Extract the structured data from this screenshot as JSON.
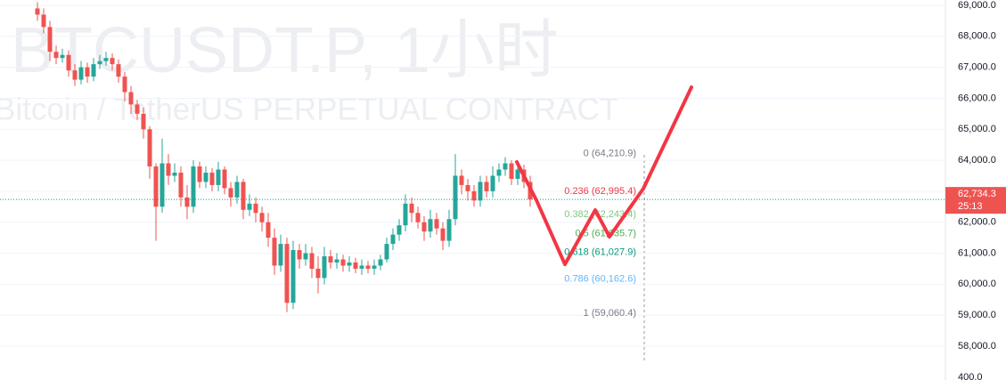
{
  "chart_data": {
    "type": "candlestick",
    "watermark_title": "BTCUSDT.P, 1小时",
    "watermark_subtitle": "Bitcoin / TetherUS PERPETUAL CONTRACT",
    "up_color": "#26a69a",
    "down_color": "#ef5350",
    "ylim": [
      57396,
      69172
    ],
    "yticks": [
      {
        "value": 69000,
        "label": "69,000.0"
      },
      {
        "value": 68000,
        "label": "68,000.0"
      },
      {
        "value": 67000,
        "label": "67,000.0"
      },
      {
        "value": 66000,
        "label": "66,000.0"
      },
      {
        "value": 65000,
        "label": "65,000.0"
      },
      {
        "value": 64000,
        "label": "64,000.0"
      },
      {
        "value": 63000,
        "label": "63,000.0"
      },
      {
        "value": 62000,
        "label": "62,000.0"
      },
      {
        "value": 61000,
        "label": "61,000.0"
      },
      {
        "value": 60000,
        "label": "60,000.0"
      },
      {
        "value": 59000,
        "label": "59,000.0"
      },
      {
        "value": 58000,
        "label": "58,000.0"
      }
    ],
    "grid": true,
    "volume_axis_label": "400.0",
    "open": [
      68900,
      68700,
      68300,
      67500,
      67300,
      67400,
      66900,
      66600,
      67000,
      66700,
      67100,
      67200,
      67300,
      67100,
      66700,
      66200,
      65800,
      65500,
      65000,
      63800,
      62500,
      63900,
      63500,
      63600,
      62800,
      62500,
      63800,
      63300,
      63600,
      63200,
      63700,
      63100,
      62800,
      63300,
      62400,
      62600,
      62300,
      62000,
      61500,
      60600,
      61300,
      59400,
      61100,
      60800,
      61000,
      60500,
      60200,
      60900,
      60700,
      60800,
      60600,
      60700,
      60500,
      60600,
      60500,
      60600,
      60800,
      61300,
      61600,
      61900,
      62600,
      62300,
      62000,
      61700,
      62100,
      61800,
      61400,
      62100,
      63500,
      63200,
      63000,
      62700,
      63300,
      63000,
      63500,
      63700,
      63900,
      63400,
      63700,
      63300
    ],
    "high": [
      69100,
      68900,
      68500,
      67700,
      67600,
      67550,
      67100,
      67200,
      67150,
      67300,
      67400,
      67500,
      67450,
      67250,
      66850,
      66400,
      65950,
      65700,
      65100,
      63900,
      64700,
      64200,
      63900,
      63800,
      63200,
      64000,
      63950,
      63800,
      63750,
      63950,
      63800,
      63300,
      63500,
      63400,
      62900,
      62800,
      62500,
      62300,
      61800,
      61600,
      61500,
      61400,
      61300,
      61300,
      61200,
      60900,
      61200,
      61100,
      61000,
      60950,
      60900,
      60850,
      60800,
      60750,
      60800,
      60950,
      61500,
      61800,
      62100,
      62900,
      62800,
      62500,
      62200,
      62400,
      62300,
      62000,
      62400,
      64200,
      63700,
      63400,
      63200,
      63500,
      63500,
      63800,
      63900,
      64100,
      64000,
      63900,
      63850,
      63500
    ],
    "low": [
      68500,
      68100,
      67200,
      67100,
      67150,
      66700,
      66400,
      66450,
      66500,
      66550,
      66950,
      67050,
      66900,
      66500,
      65900,
      65500,
      65300,
      64700,
      63400,
      61400,
      62300,
      63200,
      63300,
      62500,
      62100,
      62300,
      63100,
      63100,
      63000,
      63000,
      62900,
      62500,
      62600,
      62100,
      62200,
      62000,
      61700,
      61200,
      60300,
      60400,
      59100,
      59200,
      60500,
      60600,
      60200,
      59700,
      60000,
      60500,
      60500,
      60400,
      60400,
      60350,
      60300,
      60350,
      60300,
      60450,
      60700,
      61100,
      61400,
      61700,
      62000,
      61800,
      61400,
      61500,
      61600,
      61100,
      61200,
      61900,
      62900,
      62700,
      62500,
      62500,
      62800,
      62800,
      63300,
      63500,
      63200,
      63200,
      63100,
      62500
    ],
    "close": [
      68700,
      68300,
      67500,
      67300,
      67400,
      66900,
      66600,
      67000,
      66700,
      67100,
      67200,
      67300,
      67100,
      66700,
      66200,
      65800,
      65500,
      65000,
      63800,
      62500,
      63900,
      63500,
      63600,
      62800,
      62500,
      63800,
      63300,
      63600,
      63200,
      63700,
      63100,
      62800,
      63300,
      62400,
      62600,
      62300,
      62000,
      61500,
      60600,
      61300,
      59400,
      61100,
      60800,
      61000,
      60500,
      60200,
      60900,
      60700,
      60800,
      60600,
      60700,
      60500,
      60600,
      60500,
      60600,
      60800,
      61300,
      61600,
      61900,
      62600,
      62300,
      62000,
      61700,
      62100,
      61800,
      61400,
      62100,
      63500,
      63200,
      63000,
      62700,
      63300,
      63000,
      63500,
      63700,
      63900,
      63400,
      63700,
      63300,
      62734.3
    ],
    "last_price": {
      "value": 62734.3,
      "label": "62,734.3",
      "countdown": "25:13",
      "color": "#ef5350"
    },
    "fib_levels": [
      {
        "label": "0 (64,210.9)",
        "value": 64210.9,
        "color": "#787b86"
      },
      {
        "label": "0.236 (62,995.4)",
        "value": 62995.4,
        "color": "#f23645"
      },
      {
        "label": "0.382 (62,243.4)",
        "value": 62243.4,
        "color": "#81c784"
      },
      {
        "label": "0.5 (61,635.7)",
        "value": 61635.7,
        "color": "#4caf50"
      },
      {
        "label": "0.618 (61,027.9)",
        "value": 61027.9,
        "color": "#089981"
      },
      {
        "label": "0.786 (60,162.6)",
        "value": 60162.6,
        "color": "#64b5f6"
      },
      {
        "label": "1 (59,060.4)",
        "value": 59060.4,
        "color": "#787b86"
      }
    ]
  }
}
